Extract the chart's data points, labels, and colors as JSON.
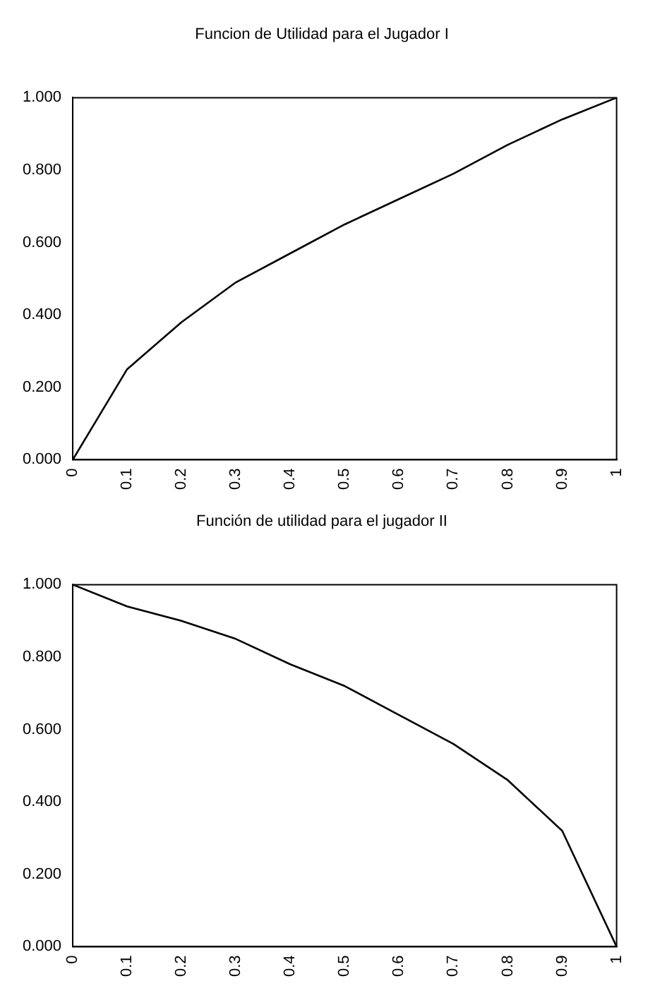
{
  "chart_data": [
    {
      "type": "line",
      "title": "Funcion de Utilidad para el Jugador I",
      "categories": [
        "0",
        "0.1",
        "0.2",
        "0.3",
        "0.4",
        "0.5",
        "0.6",
        "0.7",
        "0.8",
        "0.9",
        "1"
      ],
      "series": [
        {
          "color": "#000000",
          "values": [
            0,
            0.25,
            0.38,
            0.49,
            0.57,
            0.65,
            0.72,
            0.79,
            0.87,
            0.94,
            1.0
          ]
        }
      ],
      "ylim": [
        0,
        1
      ],
      "yticks": [
        {
          "value": 0,
          "label": "0.000"
        },
        {
          "value": 0.2,
          "label": "0.200"
        },
        {
          "value": 0.4,
          "label": "0.400"
        },
        {
          "value": 0.6,
          "label": "0.600"
        },
        {
          "value": 0.8,
          "label": "0.800"
        },
        {
          "value": 1,
          "label": "1.000"
        }
      ],
      "grid": false,
      "legend": false,
      "marker": "none",
      "line_style": "solid"
    },
    {
      "type": "line",
      "title": "Función de utilidad para el jugador II",
      "categories": [
        "0",
        "0.1",
        "0.2",
        "0.3",
        "0.4",
        "0.5",
        "0.6",
        "0.7",
        "0.8",
        "0.9",
        "1"
      ],
      "series": [
        {
          "color": "#000000",
          "values": [
            1.0,
            0.94,
            0.9,
            0.85,
            0.78,
            0.72,
            0.64,
            0.56,
            0.46,
            0.32,
            0
          ]
        }
      ],
      "ylim": [
        0,
        1
      ],
      "yticks": [
        {
          "value": 0,
          "label": "0.000"
        },
        {
          "value": 0.2,
          "label": "0.200"
        },
        {
          "value": 0.4,
          "label": "0.400"
        },
        {
          "value": 0.6,
          "label": "0.600"
        },
        {
          "value": 0.8,
          "label": "0.800"
        },
        {
          "value": 1,
          "label": "1.000"
        }
      ],
      "grid": false,
      "legend": false,
      "marker": "none",
      "line_style": "solid"
    }
  ]
}
